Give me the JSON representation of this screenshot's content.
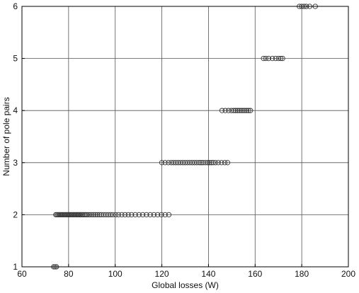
{
  "chart_data": {
    "type": "scatter",
    "title": "",
    "xlabel": "Global losses (W)",
    "ylabel": "Number of pole pairs",
    "xlim": [
      60,
      200
    ],
    "ylim": [
      1,
      6
    ],
    "xticks": [
      60,
      80,
      100,
      120,
      140,
      160,
      180,
      200
    ],
    "yticks": [
      1,
      2,
      3,
      4,
      5,
      6
    ],
    "grid": true,
    "marker": "open-circle",
    "colors": {
      "marker_edge": "#333333",
      "grid": "#555555",
      "axes": "#000000"
    },
    "series": [
      {
        "points": [
          [
            73.6,
            1
          ],
          [
            74.2,
            1
          ],
          [
            74.8,
            1
          ],
          [
            74.5,
            2
          ],
          [
            75.0,
            2
          ],
          [
            75.5,
            2
          ],
          [
            76.0,
            2
          ],
          [
            76.5,
            2
          ],
          [
            77.0,
            2
          ],
          [
            77.5,
            2
          ],
          [
            78.0,
            2
          ],
          [
            78.5,
            2
          ],
          [
            79.0,
            2
          ],
          [
            79.5,
            2
          ],
          [
            80.0,
            2
          ],
          [
            80.5,
            2
          ],
          [
            81.0,
            2
          ],
          [
            81.5,
            2
          ],
          [
            82.0,
            2
          ],
          [
            82.5,
            2
          ],
          [
            83.0,
            2
          ],
          [
            83.5,
            2
          ],
          [
            84.0,
            2
          ],
          [
            84.5,
            2
          ],
          [
            85.0,
            2
          ],
          [
            85.5,
            2
          ],
          [
            86.0,
            2
          ],
          [
            86.6,
            2
          ],
          [
            87.2,
            2
          ],
          [
            87.8,
            2
          ],
          [
            88.5,
            2
          ],
          [
            89.2,
            2
          ],
          [
            90.0,
            2
          ],
          [
            90.8,
            2
          ],
          [
            91.6,
            2
          ],
          [
            92.4,
            2
          ],
          [
            93.2,
            2
          ],
          [
            94.0,
            2
          ],
          [
            95.0,
            2
          ],
          [
            96.0,
            2
          ],
          [
            97.0,
            2
          ],
          [
            98.0,
            2
          ],
          [
            99.0,
            2
          ],
          [
            100.2,
            2
          ],
          [
            101.4,
            2
          ],
          [
            102.8,
            2
          ],
          [
            104.2,
            2
          ],
          [
            105.6,
            2
          ],
          [
            107.0,
            2
          ],
          [
            108.6,
            2
          ],
          [
            110.2,
            2
          ],
          [
            111.8,
            2
          ],
          [
            113.4,
            2
          ],
          [
            115.0,
            2
          ],
          [
            116.6,
            2
          ],
          [
            118.2,
            2
          ],
          [
            119.8,
            2
          ],
          [
            121.4,
            2
          ],
          [
            123.0,
            2
          ],
          [
            120.0,
            3
          ],
          [
            121.4,
            3
          ],
          [
            122.8,
            3
          ],
          [
            124.0,
            3
          ],
          [
            125.0,
            3
          ],
          [
            126.0,
            3
          ],
          [
            127.0,
            3
          ],
          [
            128.0,
            3
          ],
          [
            129.0,
            3
          ],
          [
            130.0,
            3
          ],
          [
            131.0,
            3
          ],
          [
            132.0,
            3
          ],
          [
            133.0,
            3
          ],
          [
            134.0,
            3
          ],
          [
            135.0,
            3
          ],
          [
            136.0,
            3
          ],
          [
            136.8,
            3
          ],
          [
            137.6,
            3
          ],
          [
            138.6,
            3
          ],
          [
            139.6,
            3
          ],
          [
            140.4,
            3
          ],
          [
            141.2,
            3
          ],
          [
            142.0,
            3
          ],
          [
            143.0,
            3
          ],
          [
            144.2,
            3
          ],
          [
            145.6,
            3
          ],
          [
            147.0,
            3
          ],
          [
            148.2,
            3
          ],
          [
            145.8,
            4
          ],
          [
            147.2,
            4
          ],
          [
            148.6,
            4
          ],
          [
            149.8,
            4
          ],
          [
            150.8,
            4
          ],
          [
            151.6,
            4
          ],
          [
            152.4,
            4
          ],
          [
            153.2,
            4
          ],
          [
            154.0,
            4
          ],
          [
            154.8,
            4
          ],
          [
            155.6,
            4
          ],
          [
            156.4,
            4
          ],
          [
            157.2,
            4
          ],
          [
            158.0,
            4
          ],
          [
            163.6,
            5
          ],
          [
            164.6,
            5
          ],
          [
            165.8,
            5
          ],
          [
            167.4,
            5
          ],
          [
            168.8,
            5
          ],
          [
            170.0,
            5
          ],
          [
            171.0,
            5
          ],
          [
            171.8,
            5
          ],
          [
            179.0,
            6
          ],
          [
            180.0,
            6
          ],
          [
            181.0,
            6
          ],
          [
            182.0,
            6
          ],
          [
            183.4,
            6
          ],
          [
            185.8,
            6
          ]
        ]
      }
    ]
  }
}
